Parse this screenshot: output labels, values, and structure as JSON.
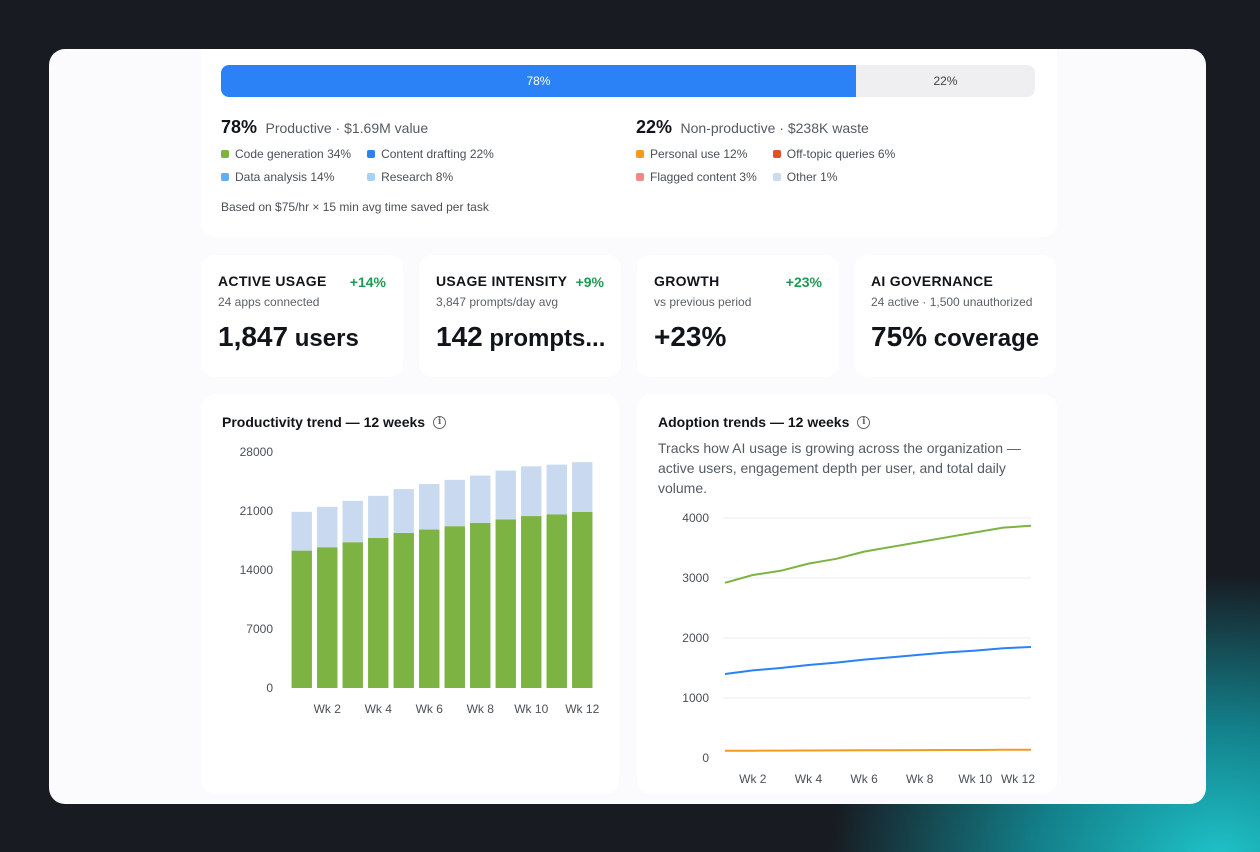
{
  "split": {
    "productive_pct_label": "78%",
    "nonproductive_pct_label": "22%",
    "productive_fraction": 0.78,
    "productive": {
      "pct": "78%",
      "desc": "Productive · $1.69M value",
      "legend": [
        {
          "label": "Code generation 34%",
          "color": "#7cb342"
        },
        {
          "label": "Content drafting 22%",
          "color": "#2b82f6"
        },
        {
          "label": "Data analysis 14%",
          "color": "#64aef0"
        },
        {
          "label": "Research 8%",
          "color": "#a6d2f5"
        }
      ]
    },
    "nonproductive": {
      "pct": "22%",
      "desc": "Non-productive · $238K waste",
      "legend": [
        {
          "label": "Personal use 12%",
          "color": "#f29b21"
        },
        {
          "label": "Off-topic queries 6%",
          "color": "#e0512a"
        },
        {
          "label": "Flagged content 3%",
          "color": "#ef8b82"
        },
        {
          "label": "Other 1%",
          "color": "#c9dcf2"
        }
      ]
    },
    "footnote": "Based on $75/hr × 15 min avg time saved per task"
  },
  "metrics": [
    {
      "title": "ACTIVE USAGE",
      "delta": "+14%",
      "sub": "24 apps connected",
      "value": "1,847",
      "unit": " users"
    },
    {
      "title": "USAGE INTENSITY",
      "delta": "+9%",
      "sub": "3,847 prompts/day avg",
      "value": "142",
      "unit": " prompts..."
    },
    {
      "title": "GROWTH",
      "delta": "+23%",
      "sub": "vs previous period",
      "value": "+23%",
      "unit": ""
    },
    {
      "title": "AI GOVERNANCE",
      "delta": "",
      "sub": "24 active · 1,500 unauthorized",
      "value": "75%",
      "unit": " coverage"
    }
  ],
  "productivity_chart": {
    "title": "Productivity trend — 12 weeks",
    "info_icon": "info-icon"
  },
  "adoption_chart": {
    "title": "Adoption trends — 12 weeks",
    "info_icon": "info-icon",
    "description": "Tracks how AI usage is growing across the organization — active users, engagement depth per user, and total daily volume."
  },
  "chart_data": [
    {
      "type": "bar",
      "stacked": true,
      "categories": [
        "Wk 1",
        "Wk 2",
        "Wk 3",
        "Wk 4",
        "Wk 5",
        "Wk 6",
        "Wk 7",
        "Wk 8",
        "Wk 9",
        "Wk 10",
        "Wk 11",
        "Wk 12"
      ],
      "tick_labels": [
        "Wk 2",
        "Wk 4",
        "Wk 6",
        "Wk 8",
        "Wk 10",
        "Wk 12"
      ],
      "series": [
        {
          "values": [
            16300,
            16700,
            17300,
            17800,
            18400,
            18800,
            19200,
            19600,
            20000,
            20400,
            20600,
            20900
          ],
          "color": "#7cb342"
        },
        {
          "values": [
            4600,
            4800,
            4900,
            5000,
            5200,
            5400,
            5500,
            5600,
            5800,
            5900,
            5900,
            5900
          ],
          "color": "#c9daf0"
        }
      ],
      "yticks": [
        0,
        7000,
        14000,
        21000,
        28000
      ],
      "ylim": [
        0,
        28000
      ],
      "grid": false
    },
    {
      "type": "line",
      "x": [
        "Wk 1",
        "Wk 2",
        "Wk 3",
        "Wk 4",
        "Wk 5",
        "Wk 6",
        "Wk 7",
        "Wk 8",
        "Wk 9",
        "Wk 10",
        "Wk 11",
        "Wk 12"
      ],
      "tick_labels": [
        "Wk 2",
        "Wk 4",
        "Wk 6",
        "Wk 8",
        "Wk 10",
        "Wk 12"
      ],
      "series": [
        {
          "values": [
            2920,
            3050,
            3120,
            3240,
            3320,
            3440,
            3520,
            3600,
            3680,
            3760,
            3840,
            3870
          ],
          "color": "#7cb342"
        },
        {
          "values": [
            1400,
            1460,
            1500,
            1550,
            1590,
            1640,
            1680,
            1720,
            1760,
            1790,
            1830,
            1850
          ],
          "color": "#2b82f6"
        },
        {
          "values": [
            120,
            122,
            124,
            125,
            127,
            129,
            130,
            131,
            133,
            134,
            136,
            137
          ],
          "color": "#f29b21"
        }
      ],
      "yticks": [
        0,
        1000,
        2000,
        3000,
        4000
      ],
      "ylim": [
        0,
        4000
      ],
      "grid": true
    }
  ]
}
